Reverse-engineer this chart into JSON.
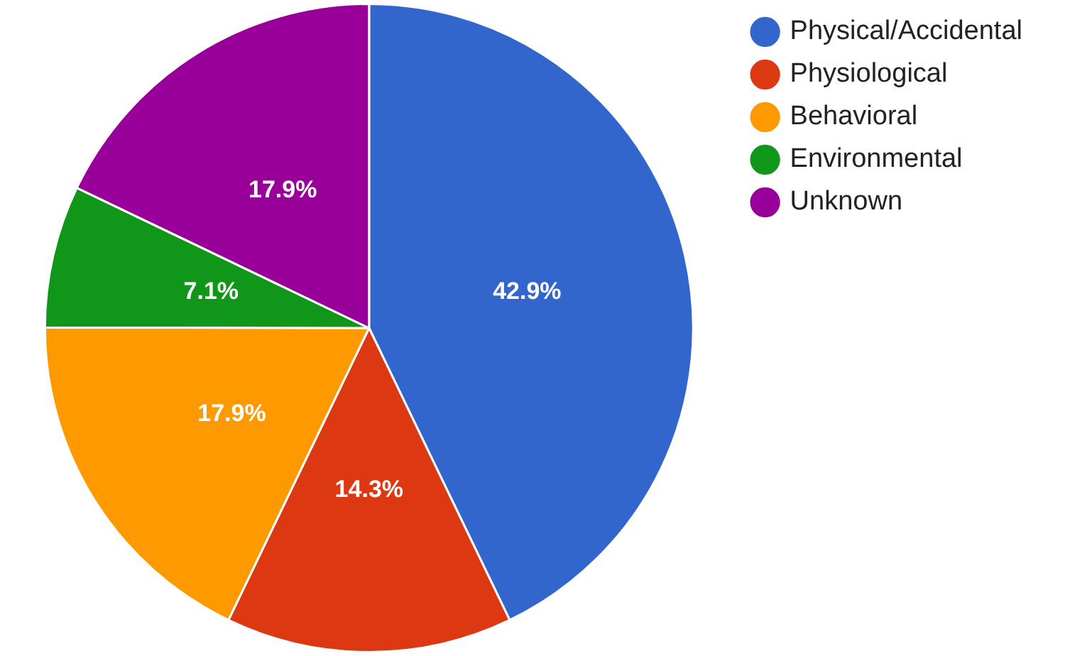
{
  "chart_data": {
    "type": "pie",
    "categories": [
      "Physical/Accidental",
      "Physiological",
      "Behavioral",
      "Environmental",
      "Unknown"
    ],
    "values": [
      42.9,
      14.3,
      17.9,
      7.1,
      17.9
    ],
    "colors": [
      "#3366cc",
      "#dc3912",
      "#ff9900",
      "#109618",
      "#990099"
    ],
    "value_labels": [
      "42.9%",
      "14.3%",
      "17.9%",
      "7.1%",
      "17.9%"
    ],
    "legend": "top right"
  }
}
